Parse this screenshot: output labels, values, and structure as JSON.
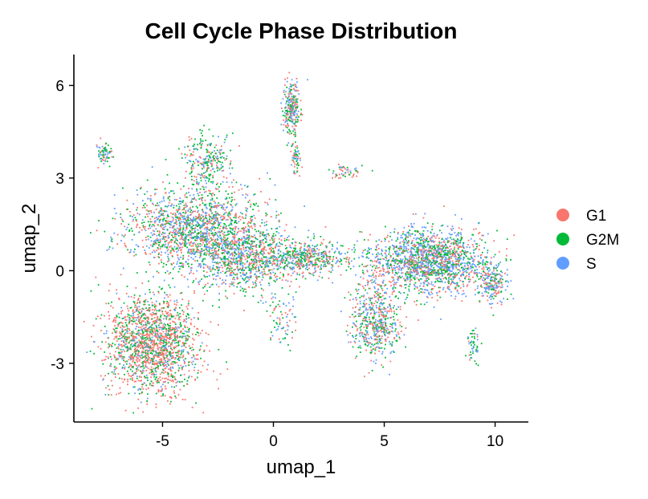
{
  "chart_data": {
    "type": "scatter",
    "title": "Cell Cycle Phase Distribution",
    "xlabel": "umap_1",
    "ylabel": "umap_2",
    "xlim": [
      -9.0,
      11.5
    ],
    "ylim": [
      -4.9,
      7.0
    ],
    "xticks": [
      -5,
      0,
      5,
      10
    ],
    "yticks": [
      -3,
      0,
      3,
      6
    ],
    "xtick_labels": [
      "-5",
      "0",
      "5",
      "10"
    ],
    "ytick_labels": [
      "-3",
      "0",
      "3",
      "6"
    ],
    "grid": false,
    "legend_position": "right",
    "series": [
      {
        "name": "G1",
        "color": "#F8766D"
      },
      {
        "name": "G2M",
        "color": "#00BA38"
      },
      {
        "name": "S",
        "color": "#619CFF"
      }
    ],
    "clusters": [
      {
        "cx": -3.5,
        "cy": 1.4,
        "sx": 2.8,
        "sy": 1.2,
        "n": 1500,
        "mix": [
          0.34,
          0.33,
          0.33
        ]
      },
      {
        "cx": -1.2,
        "cy": 0.4,
        "sx": 2.2,
        "sy": 1.0,
        "n": 900,
        "mix": [
          0.34,
          0.33,
          0.33
        ]
      },
      {
        "cx": 1.6,
        "cy": 0.4,
        "sx": 1.6,
        "sy": 0.5,
        "n": 450,
        "mix": [
          0.34,
          0.33,
          0.33
        ]
      },
      {
        "cx": -3.0,
        "cy": 3.5,
        "sx": 1.0,
        "sy": 0.8,
        "n": 260,
        "mix": [
          0.3,
          0.45,
          0.25
        ]
      },
      {
        "cx": -5.4,
        "cy": -2.4,
        "sx": 1.9,
        "sy": 1.45,
        "n": 1700,
        "mix": [
          0.55,
          0.3,
          0.15
        ]
      },
      {
        "cx": 0.8,
        "cy": 5.2,
        "sx": 0.35,
        "sy": 0.85,
        "n": 260,
        "mix": [
          0.34,
          0.33,
          0.33
        ]
      },
      {
        "cx": 1.0,
        "cy": 3.6,
        "sx": 0.18,
        "sy": 0.5,
        "n": 60,
        "mix": [
          0.34,
          0.33,
          0.33
        ]
      },
      {
        "cx": 7.0,
        "cy": 0.3,
        "sx": 2.4,
        "sy": 0.9,
        "n": 1700,
        "mix": [
          0.3,
          0.3,
          0.4
        ]
      },
      {
        "cx": 4.6,
        "cy": -1.6,
        "sx": 1.0,
        "sy": 1.2,
        "n": 550,
        "mix": [
          0.34,
          0.33,
          0.33
        ]
      },
      {
        "cx": 9.9,
        "cy": -0.4,
        "sx": 0.6,
        "sy": 0.6,
        "n": 200,
        "mix": [
          0.3,
          0.3,
          0.4
        ]
      },
      {
        "cx": -7.6,
        "cy": 3.8,
        "sx": 0.35,
        "sy": 0.28,
        "n": 70,
        "mix": [
          0.4,
          0.3,
          0.3
        ]
      },
      {
        "cx": 3.2,
        "cy": 3.2,
        "sx": 0.6,
        "sy": 0.2,
        "n": 50,
        "mix": [
          0.4,
          0.3,
          0.3
        ]
      },
      {
        "cx": 9.0,
        "cy": -2.5,
        "sx": 0.25,
        "sy": 0.5,
        "n": 50,
        "mix": [
          0.2,
          0.5,
          0.3
        ]
      },
      {
        "cx": 0.3,
        "cy": -1.6,
        "sx": 0.6,
        "sy": 0.7,
        "n": 70,
        "mix": [
          0.34,
          0.33,
          0.33
        ]
      }
    ]
  }
}
